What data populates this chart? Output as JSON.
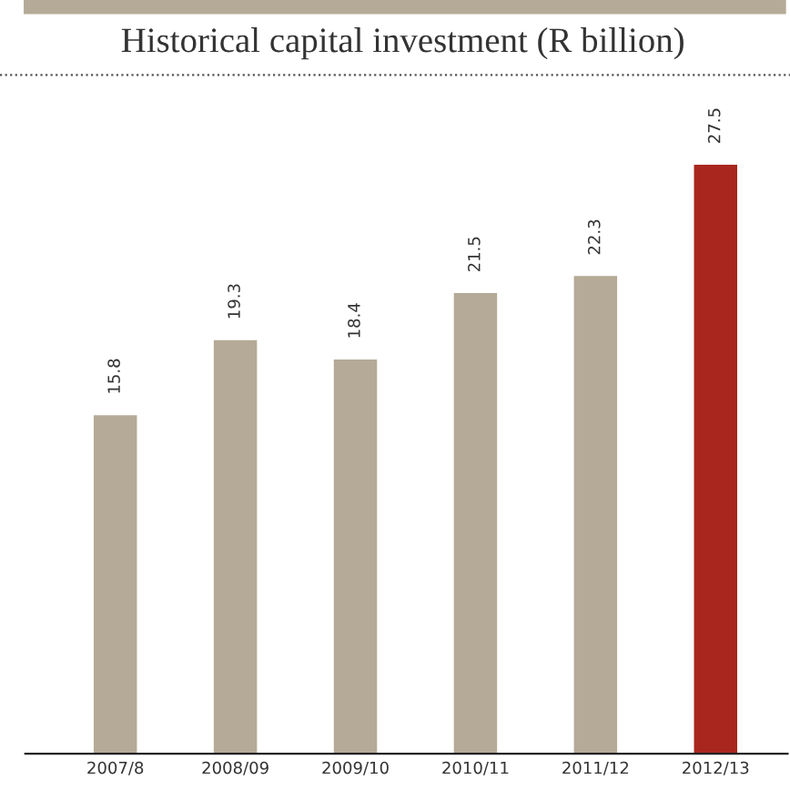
{
  "chart_data": {
    "type": "bar",
    "title": "Historical capital investment (R billion)",
    "categories": [
      "2007/8",
      "2008/09",
      "2009/10",
      "2010/11",
      "2011/12",
      "2012/13"
    ],
    "values": [
      15.8,
      19.3,
      18.4,
      21.5,
      22.3,
      27.5
    ],
    "colors": [
      "#b5aa97",
      "#b5aa97",
      "#b5aa97",
      "#b5aa97",
      "#b5aa97",
      "#a8261d"
    ],
    "data_labels": true,
    "grid": false,
    "legend": false
  }
}
